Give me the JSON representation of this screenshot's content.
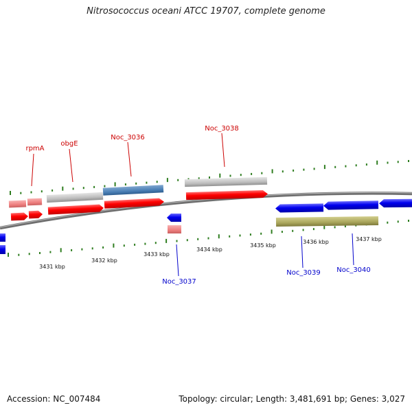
{
  "title": "Nitrosococcus oceani ATCC 19707, complete genome",
  "footer": {
    "accession": "Accession: NC_007484",
    "topology": "Topology: circular; Length: 3,481,691 bp; Genes: 3,027"
  },
  "colors": {
    "backbone": "#888888",
    "tick": "#2e7d1f",
    "cds": "#ff0000",
    "cds_minus": "#0000ee",
    "gene_pale": "#f08080",
    "grey_feature": "#bdbdbd",
    "steel_feature": "#4a7fb5",
    "olive_feature": "#a8a45a",
    "label_plus": "#cc0000",
    "label_minus": "#0000cc"
  },
  "axis_labels": [
    "3431 kbp",
    "3432 kbp",
    "3433 kbp",
    "3434 kbp",
    "3435 kbp",
    "3436 kbp",
    "3437 kbp"
  ],
  "gene_labels": [
    "rpmA",
    "obgE",
    "Noc_3036",
    "Noc_3038",
    "Noc_3037",
    "Noc_3039",
    "Noc_3040"
  ]
}
